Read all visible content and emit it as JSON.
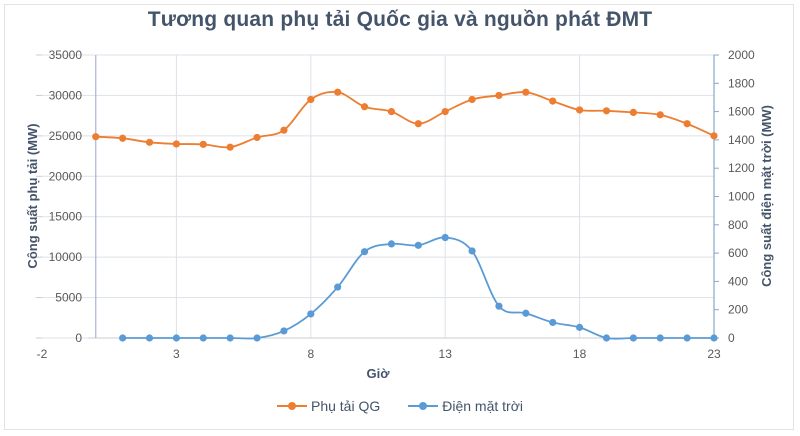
{
  "chart_data": {
    "type": "line",
    "title": "Tương quan phụ tải Quốc gia và nguồn phát ĐMT",
    "xlabel": "Giờ",
    "ylabel": "Công suất phụ tải (MW)",
    "y2label": "Công suất điện mặt trời (MW)",
    "xlim": [
      -2,
      23
    ],
    "ylim": [
      0,
      35000
    ],
    "y2lim": [
      0,
      2000
    ],
    "x_ticks": [
      "-2",
      "3",
      "8",
      "13",
      "18",
      "23"
    ],
    "y_ticks": [
      "0",
      "5000",
      "10000",
      "15000",
      "20000",
      "25000",
      "30000",
      "35000"
    ],
    "y2_ticks": [
      "0",
      "200",
      "400",
      "600",
      "800",
      "1000",
      "1200",
      "1400",
      "1600",
      "1800",
      "2000"
    ],
    "grid": true,
    "legend_position": "bottom",
    "series": [
      {
        "name": "Phụ tải QG",
        "axis": "left",
        "color": "#ed7d31",
        "x": [
          0,
          1,
          2,
          3,
          4,
          5,
          6,
          7,
          8,
          9,
          10,
          11,
          12,
          13,
          14,
          15,
          16,
          17,
          18,
          19,
          20,
          21,
          22,
          23
        ],
        "values": [
          24900,
          24700,
          24200,
          24000,
          23950,
          23600,
          24800,
          25700,
          29500,
          30400,
          28600,
          28000,
          26500,
          28000,
          29500,
          30000,
          30400,
          29300,
          28200,
          28100,
          27900,
          27600,
          26500,
          25000
        ]
      },
      {
        "name": "Điện mặt trời",
        "axis": "right",
        "color": "#5b9bd5",
        "x": [
          1,
          2,
          3,
          4,
          5,
          6,
          7,
          8,
          9,
          10,
          11,
          12,
          13,
          14,
          15,
          16,
          17,
          18,
          19,
          20,
          21,
          22,
          23
        ],
        "values": [
          0,
          0,
          0,
          0,
          0,
          0,
          50,
          170,
          360,
          610,
          665,
          655,
          710,
          615,
          225,
          175,
          110,
          75,
          0,
          0,
          0,
          0,
          0
        ]
      }
    ]
  },
  "legend": {
    "items": [
      {
        "label": "Phụ tải QG",
        "color": "#ed7d31"
      },
      {
        "label": "Điện mặt trời",
        "color": "#5b9bd5"
      }
    ]
  }
}
